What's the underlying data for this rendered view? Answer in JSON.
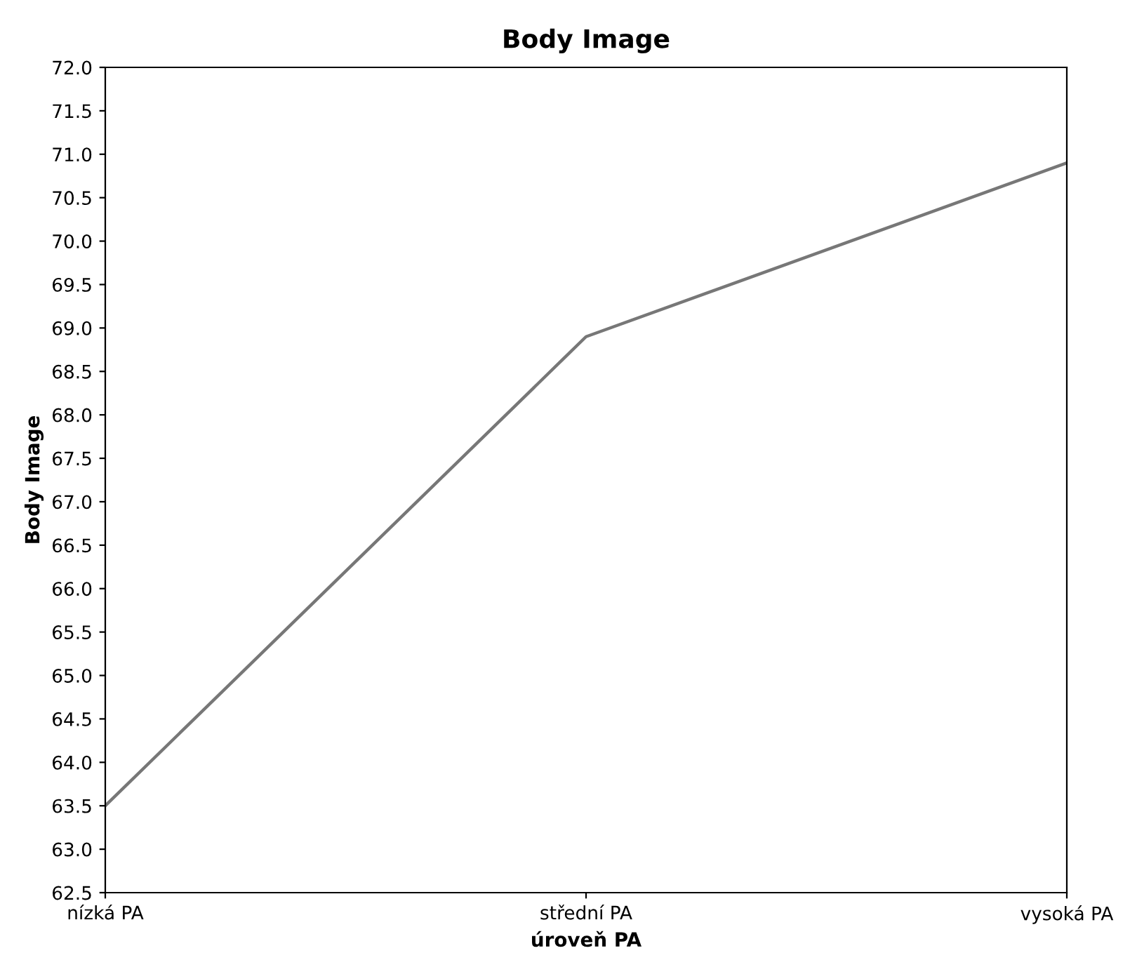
{
  "chart_data": {
    "type": "line",
    "title": "Body Image",
    "xlabel": "úroveň PA",
    "ylabel": "Body Image",
    "categories": [
      "nízká PA",
      "střední PA",
      "vysoká PA"
    ],
    "series": [
      {
        "color": "#777777",
        "values": [
          63.5,
          68.9,
          70.9
        ]
      }
    ],
    "ylim": [
      62.5,
      72.0
    ],
    "yticks": [
      {
        "value": 62.5,
        "label": "62.5"
      },
      {
        "value": 63.0,
        "label": "63.0"
      },
      {
        "value": 63.5,
        "label": "63.5"
      },
      {
        "value": 64.0,
        "label": "64.0"
      },
      {
        "value": 64.5,
        "label": "64.5"
      },
      {
        "value": 65.0,
        "label": "65.0"
      },
      {
        "value": 65.5,
        "label": "65.5"
      },
      {
        "value": 66.0,
        "label": "66.0"
      },
      {
        "value": 66.5,
        "label": "66.5"
      },
      {
        "value": 67.0,
        "label": "67.0"
      },
      {
        "value": 67.5,
        "label": "67.5"
      },
      {
        "value": 68.0,
        "label": "68.0"
      },
      {
        "value": 68.5,
        "label": "68.5"
      },
      {
        "value": 69.0,
        "label": "69.0"
      },
      {
        "value": 69.5,
        "label": "69.5"
      },
      {
        "value": 70.0,
        "label": "70.0"
      },
      {
        "value": 70.5,
        "label": "70.5"
      },
      {
        "value": 71.0,
        "label": "71.0"
      },
      {
        "value": 71.5,
        "label": "71.5"
      },
      {
        "value": 72.0,
        "label": "72.0"
      }
    ],
    "grid": false,
    "marker": "none",
    "line_style": "solid"
  }
}
